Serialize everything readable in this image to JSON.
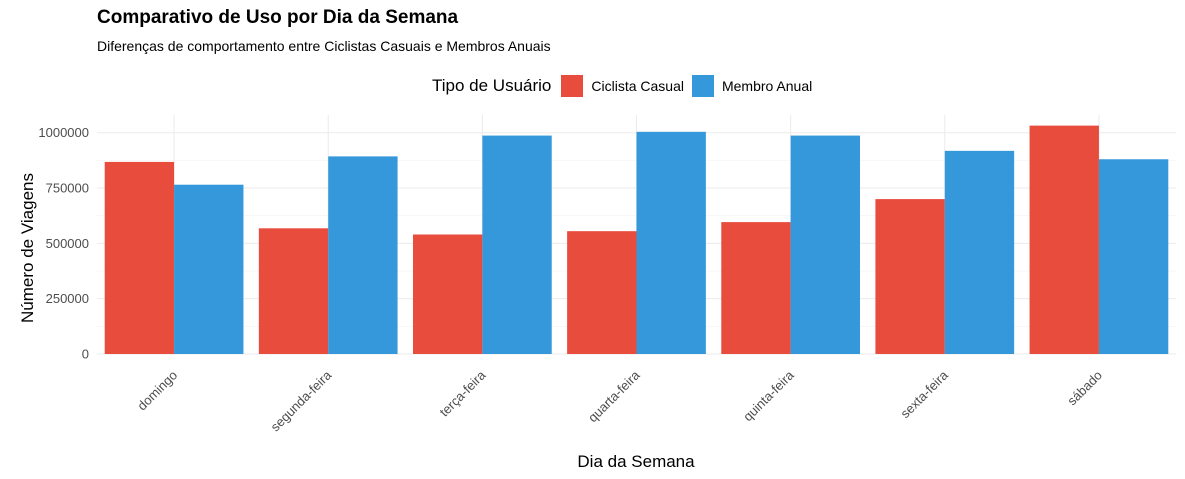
{
  "chart_data": {
    "type": "bar",
    "title": "Comparativo de Uso por Dia da Semana",
    "subtitle": "Diferenças de comportamento entre Ciclistas Casuais e Membros Anuais",
    "xlabel": "Dia da Semana",
    "ylabel": "Número de Viagens",
    "legend_title": "Tipo de Usuário",
    "legend_position": "top",
    "grid": true,
    "ylim": [
      0,
      1080000
    ],
    "yticks": [
      0,
      250000,
      500000,
      750000,
      1000000
    ],
    "ytick_labels": [
      "0",
      "250000",
      "500000",
      "750000",
      "1000000"
    ],
    "categories": [
      "domingo",
      "segunda-feira",
      "terça-feira",
      "quarta-feira",
      "quinta-feira",
      "sexta-feira",
      "sábado"
    ],
    "series": [
      {
        "name": "Ciclista Casual",
        "color": "#E74C3C",
        "values": [
          868000,
          568000,
          540000,
          555000,
          596000,
          700000,
          1032000
        ]
      },
      {
        "name": "Membro Anual",
        "color": "#3498DB",
        "values": [
          765000,
          893000,
          987000,
          1004000,
          987000,
          918000,
          880000
        ]
      }
    ]
  }
}
